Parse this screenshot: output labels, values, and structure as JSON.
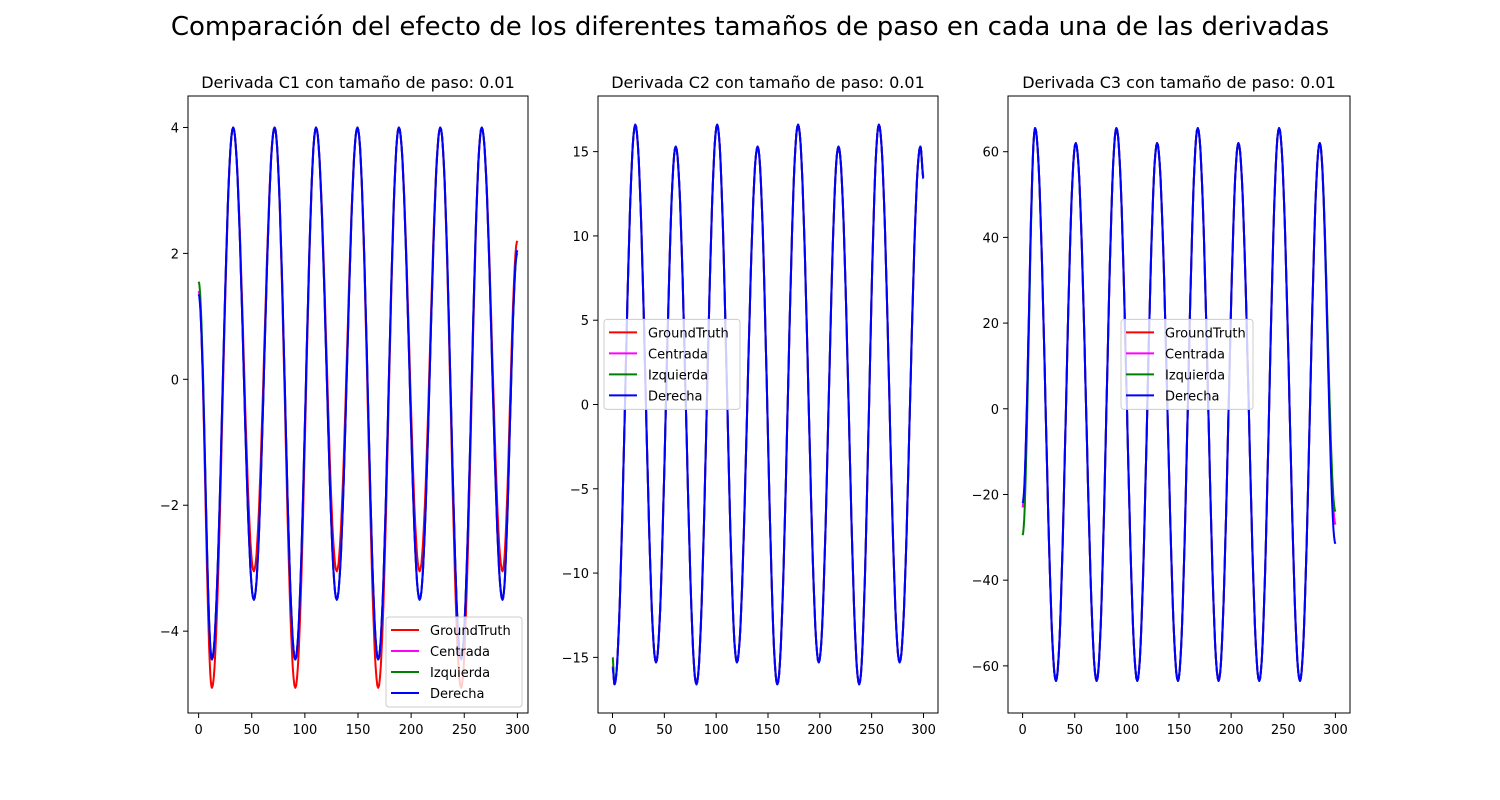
{
  "figure": {
    "suptitle": "Comparación del efecto de los diferentes tamaños de paso en cada una de las derivadas"
  },
  "chart_data": [
    {
      "type": "line",
      "title": "Derivada C1 con tamaño de paso: 0.01",
      "xlabel": "",
      "ylabel": "",
      "xlim": [
        -10,
        310
      ],
      "ylim": [
        -5.3,
        4.5
      ],
      "xticks": [
        0,
        50,
        100,
        150,
        200,
        250,
        300
      ],
      "yticks": [
        -4,
        -2,
        0,
        2,
        4
      ],
      "grid": false,
      "legend_position": "lower right",
      "approx_period": 38.5,
      "series": [
        {
          "name": "GroundTruth",
          "color": "#ff0000",
          "x": [
            0,
            12.5,
            32.5,
            52,
            71.5,
            91,
            110.5,
            130,
            149.5,
            169,
            188.5,
            208,
            227.5,
            247,
            266.5,
            286,
            300
          ],
          "y": [
            1.4,
            -4.9,
            4.0,
            -3.05,
            4.0,
            -4.9,
            4.0,
            -3.05,
            4.0,
            -4.9,
            4.0,
            -3.05,
            4.0,
            -4.9,
            4.0,
            -3.05,
            2.2
          ]
        },
        {
          "name": "Centrada",
          "color": "#ff00ff",
          "x": [
            0,
            12.5,
            32.5,
            52,
            71.5,
            91,
            110.5,
            130,
            149.5,
            169,
            188.5,
            208,
            227.5,
            247,
            266.5,
            286,
            300
          ],
          "y": [
            1.4,
            -4.45,
            4.0,
            -3.5,
            4.0,
            -4.45,
            4.0,
            -3.5,
            4.0,
            -4.45,
            4.0,
            -3.5,
            4.0,
            -4.45,
            4.0,
            -3.5,
            2.05
          ]
        },
        {
          "name": "Izquierda",
          "color": "#008000",
          "x": [
            0,
            12.5,
            32.5,
            52,
            71.5,
            91,
            110.5,
            130,
            149.5,
            169,
            188.5,
            208,
            227.5,
            247,
            266.5,
            286,
            300
          ],
          "y": [
            1.55,
            -4.45,
            4.0,
            -3.5,
            4.0,
            -4.45,
            4.0,
            -3.5,
            4.0,
            -4.45,
            4.0,
            -3.5,
            4.0,
            -4.45,
            4.0,
            -3.5,
            2.0
          ]
        },
        {
          "name": "Derecha",
          "color": "#0000ff",
          "x": [
            0,
            12.5,
            32.5,
            52,
            71.5,
            91,
            110.5,
            130,
            149.5,
            169,
            188.5,
            208,
            227.5,
            247,
            266.5,
            286,
            300
          ],
          "y": [
            1.35,
            -4.45,
            4.0,
            -3.5,
            4.0,
            -4.45,
            4.0,
            -3.5,
            4.0,
            -4.45,
            4.0,
            -3.5,
            4.0,
            -4.45,
            4.0,
            -3.5,
            2.05
          ]
        }
      ]
    },
    {
      "type": "line",
      "title": "Derivada C2 con tamaño de paso: 0.01",
      "xlabel": "",
      "ylabel": "",
      "xlim": [
        -14,
        314
      ],
      "ylim": [
        -18.3,
        18.3
      ],
      "xticks": [
        0,
        50,
        100,
        150,
        200,
        250,
        300
      ],
      "yticks": [
        -15,
        -10,
        -5,
        0,
        5,
        10,
        15
      ],
      "grid": false,
      "legend_position": "center left",
      "approx_period": 39,
      "series": [
        {
          "name": "GroundTruth",
          "color": "#ff0000",
          "x": [
            0,
            2,
            22,
            42,
            61,
            81,
            101,
            120,
            140,
            159,
            179,
            199,
            218,
            238,
            257,
            277,
            297,
            300
          ],
          "y": [
            -15.5,
            -16.6,
            16.6,
            -15.3,
            15.3,
            -16.6,
            16.6,
            -15.3,
            15.3,
            -16.6,
            16.6,
            -15.3,
            15.3,
            -16.6,
            16.6,
            -15.3,
            15.3,
            13.5
          ]
        },
        {
          "name": "Centrada",
          "color": "#ff00ff",
          "x": [
            0,
            2,
            22,
            42,
            61,
            81,
            101,
            120,
            140,
            159,
            179,
            199,
            218,
            238,
            257,
            277,
            297,
            300
          ],
          "y": [
            -15.5,
            -16.6,
            16.6,
            -15.3,
            15.3,
            -16.6,
            16.6,
            -15.3,
            15.3,
            -16.6,
            16.6,
            -15.3,
            15.3,
            -16.6,
            16.6,
            -15.3,
            15.3,
            13.5
          ]
        },
        {
          "name": "Izquierda",
          "color": "#008000",
          "x": [
            0,
            2,
            22,
            42,
            61,
            81,
            101,
            120,
            140,
            159,
            179,
            199,
            218,
            238,
            257,
            277,
            297,
            300
          ],
          "y": [
            -15.0,
            -16.6,
            16.6,
            -15.3,
            15.3,
            -16.6,
            16.6,
            -15.3,
            15.3,
            -16.6,
            16.6,
            -15.3,
            15.3,
            -16.6,
            16.6,
            -15.3,
            15.3,
            13.5
          ]
        },
        {
          "name": "Derecha",
          "color": "#0000ff",
          "x": [
            0,
            2,
            22,
            42,
            61,
            81,
            101,
            120,
            140,
            159,
            179,
            199,
            218,
            238,
            257,
            277,
            297,
            300
          ],
          "y": [
            -15.6,
            -16.6,
            16.6,
            -15.3,
            15.3,
            -16.6,
            16.6,
            -15.3,
            15.3,
            -16.6,
            16.6,
            -15.3,
            15.3,
            -16.6,
            16.6,
            -15.3,
            15.3,
            13.4
          ]
        }
      ]
    },
    {
      "type": "line",
      "title": "Derivada C3 con tamaño de paso: 0.01",
      "xlabel": "",
      "ylabel": "",
      "xlim": [
        -14,
        314
      ],
      "ylim": [
        -71,
        73
      ],
      "xticks": [
        0,
        50,
        100,
        150,
        200,
        250,
        300
      ],
      "yticks": [
        -60,
        -40,
        -20,
        0,
        20,
        40,
        60
      ],
      "grid": false,
      "legend_position": "center",
      "approx_period": 39,
      "series": [
        {
          "name": "GroundTruth",
          "color": "#ff0000",
          "x": [
            0,
            12,
            32,
            51,
            71,
            90,
            110,
            129,
            149,
            168,
            188,
            207,
            227,
            246,
            266,
            285,
            300
          ],
          "y": [
            -23,
            65.5,
            -63.5,
            62,
            -63.5,
            65.5,
            -63.5,
            62,
            -63.5,
            65.5,
            -63.5,
            62,
            -63.5,
            65.5,
            -63.5,
            62,
            -27
          ]
        },
        {
          "name": "Centrada",
          "color": "#ff00ff",
          "x": [
            0,
            12,
            32,
            51,
            71,
            90,
            110,
            129,
            149,
            168,
            188,
            207,
            227,
            246,
            266,
            285,
            300
          ],
          "y": [
            -23,
            65.5,
            -63.5,
            62,
            -63.5,
            65.5,
            -63.5,
            62,
            -63.5,
            65.5,
            -63.5,
            62,
            -63.5,
            65.5,
            -63.5,
            62,
            -27
          ]
        },
        {
          "name": "Izquierda",
          "color": "#008000",
          "x": [
            0,
            12,
            32,
            51,
            71,
            90,
            110,
            129,
            149,
            168,
            188,
            207,
            227,
            246,
            266,
            285,
            300
          ],
          "y": [
            -29.5,
            65.5,
            -63.5,
            62,
            -63.5,
            65.5,
            -63.5,
            62,
            -63.5,
            65.5,
            -63.5,
            62,
            -63.5,
            65.5,
            -63.5,
            62,
            -24
          ]
        },
        {
          "name": "Derecha",
          "color": "#0000ff",
          "x": [
            0,
            12,
            32,
            51,
            71,
            90,
            110,
            129,
            149,
            168,
            188,
            207,
            227,
            246,
            266,
            285,
            300
          ],
          "y": [
            -22,
            65.5,
            -63.5,
            62,
            -63.5,
            65.5,
            -63.5,
            62,
            -63.5,
            65.5,
            -63.5,
            62,
            -63.5,
            65.5,
            -63.5,
            62,
            -31.5
          ]
        }
      ]
    }
  ]
}
